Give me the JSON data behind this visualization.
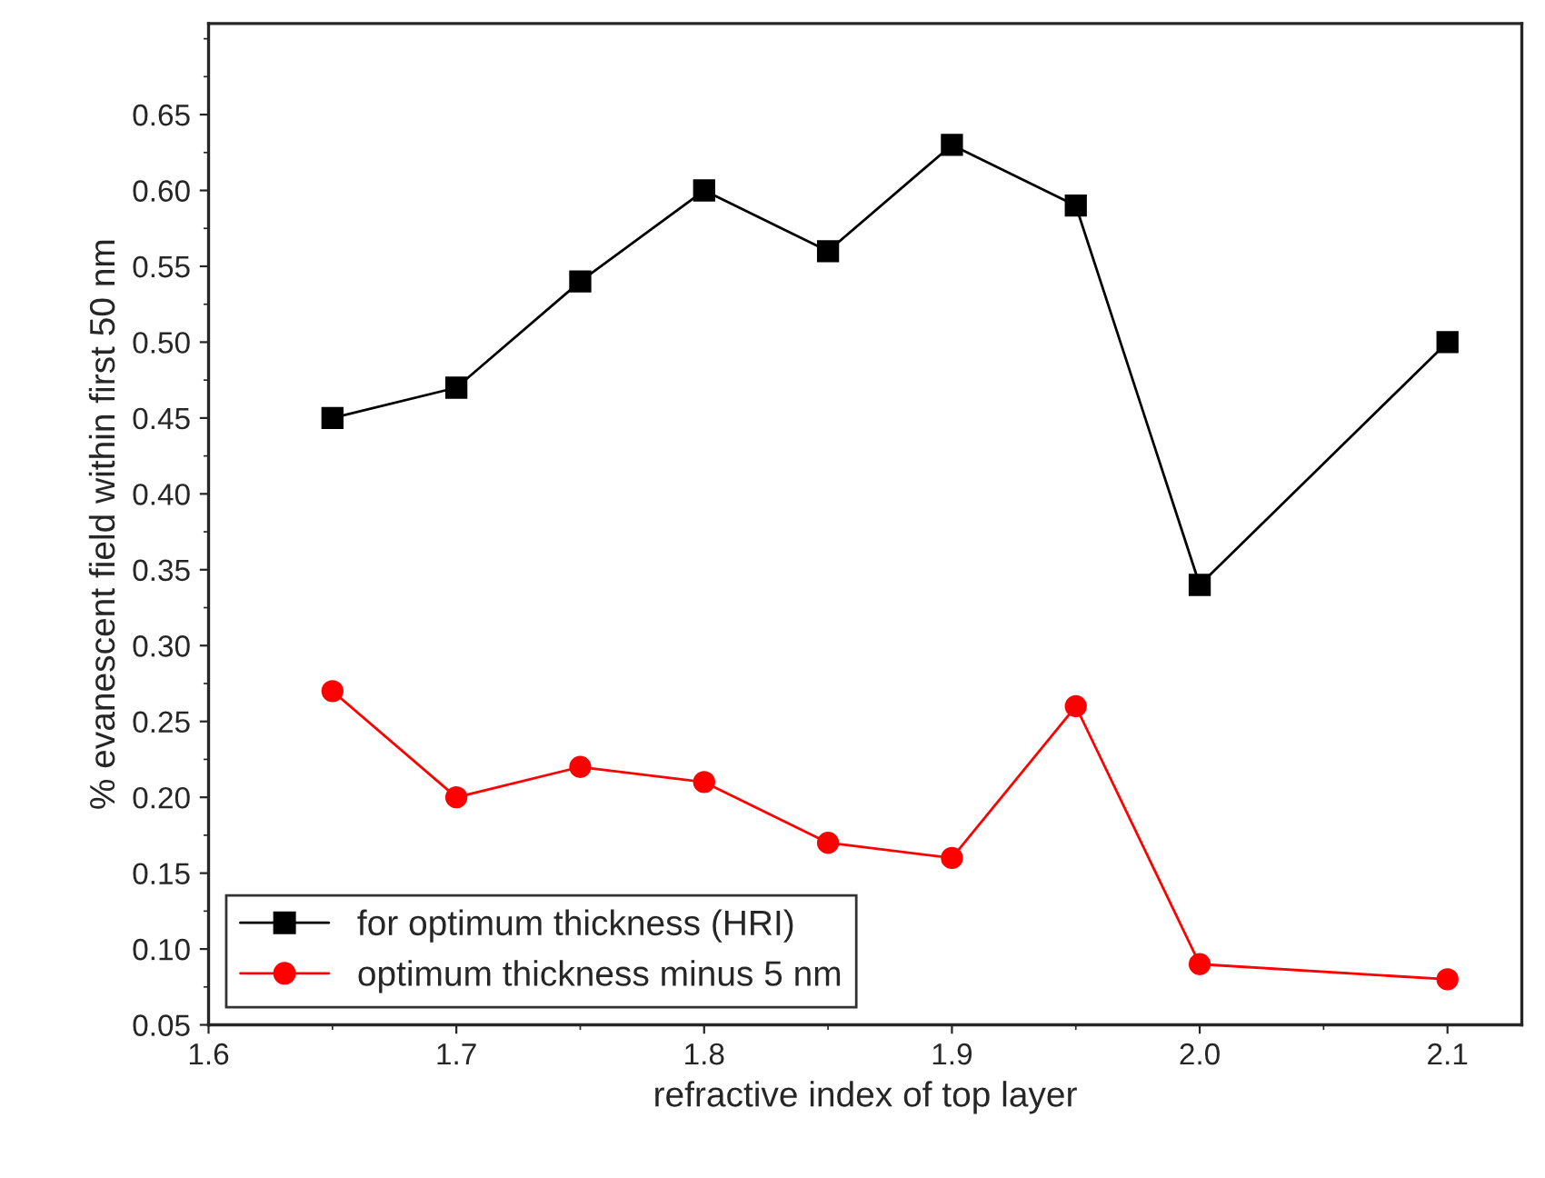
{
  "chart_data": {
    "type": "line",
    "xlabel": "refractive index of top layer",
    "ylabel": "% evanescent field within first 50 nm",
    "xlim": [
      1.6,
      2.13
    ],
    "ylim": [
      0.05,
      0.71
    ],
    "xticks": [
      1.6,
      1.7,
      1.8,
      1.9,
      {
        "value": 2.0,
        "label": "2.0"
      },
      2.1
    ],
    "yticks": [
      0.05,
      {
        "value": 0.1,
        "label": "0.10"
      },
      0.15,
      {
        "value": 0.2,
        "label": "0.20"
      },
      0.25,
      {
        "value": 0.3,
        "label": "0.30"
      },
      0.35,
      {
        "value": 0.4,
        "label": "0.40"
      },
      0.45,
      {
        "value": 0.5,
        "label": "0.50"
      },
      0.55,
      {
        "value": 0.6,
        "label": "0.60"
      },
      0.65
    ],
    "grid": false,
    "legend": "bottom left",
    "line_style": "solid",
    "series": [
      {
        "name": "for optimum thickness (HRI)",
        "color": "#000000",
        "marker": "square",
        "x": [
          1.65,
          1.7,
          1.75,
          1.8,
          1.85,
          1.9,
          1.95,
          2.0,
          2.1
        ],
        "values": [
          0.45,
          0.47,
          0.54,
          0.6,
          0.56,
          0.63,
          0.59,
          0.34,
          0.5
        ]
      },
      {
        "name": "optimum thickness minus 5 nm",
        "color": "#ff0000",
        "marker": "circle",
        "x": [
          1.65,
          1.7,
          1.75,
          1.8,
          1.85,
          1.9,
          1.95,
          2.0,
          2.1
        ],
        "values": [
          0.27,
          0.2,
          0.22,
          0.21,
          0.17,
          0.16,
          0.26,
          0.09,
          0.08
        ]
      }
    ]
  }
}
